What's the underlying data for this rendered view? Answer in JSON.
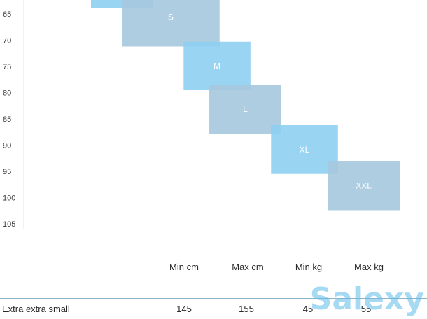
{
  "chart_data": {
    "type": "range-box",
    "y_ticks": [
      "65",
      "70",
      "75",
      "80",
      "85",
      "90",
      "95",
      "100",
      "105"
    ],
    "ylim": [
      61,
      105
    ],
    "columns": [
      "Min cm",
      "Max cm",
      "Min kg",
      "Max kg"
    ],
    "boxes": [
      {
        "label": "",
        "x_start": 160,
        "x_end": 172,
        "y_start": 60,
        "y_end": 63.8,
        "color": "#8ecff2"
      },
      {
        "label": "S",
        "x_start": 166,
        "x_end": 185,
        "y_start": 60,
        "y_end": 71.2,
        "color": "#a6c8de"
      },
      {
        "label": "M",
        "x_start": 178,
        "x_end": 191,
        "y_start": 70.3,
        "y_end": 79.5,
        "color": "#8ecff2"
      },
      {
        "label": "L",
        "x_start": 183,
        "x_end": 197,
        "y_start": 78.5,
        "y_end": 87.8,
        "color": "#a6c8de"
      },
      {
        "label": "XL",
        "x_start": 195,
        "x_end": 208,
        "y_start": 86.2,
        "y_end": 95.5,
        "color": "#8ecff2"
      },
      {
        "label": "XXL",
        "x_start": 206,
        "x_end": 220,
        "y_start": 93,
        "y_end": 102.4,
        "color": "#a6c8de"
      }
    ]
  },
  "table": {
    "headers": [
      "Min cm",
      "Max cm",
      "Min kg",
      "Max kg"
    ],
    "row": {
      "name": "Extra extra small",
      "min_cm": "145",
      "max_cm": "155",
      "min_kg": "45",
      "max_kg": "55"
    }
  },
  "watermark": "Salexy"
}
